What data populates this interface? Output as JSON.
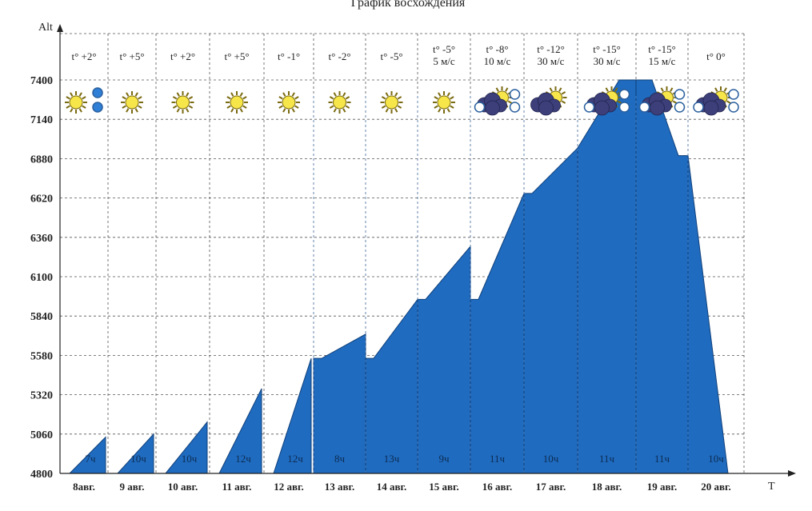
{
  "chart_data": {
    "type": "area",
    "title": "График восхождения",
    "ylabel": "Alt",
    "xlabel": "T",
    "y_ticks": [
      4800,
      5060,
      5320,
      5580,
      5840,
      6100,
      6360,
      6620,
      6880,
      7140,
      7400
    ],
    "ylim": [
      4800,
      7400
    ],
    "grid": true,
    "fill_color": "#1f6bbf",
    "days": [
      {
        "date": "8авг.",
        "weather": [
          "t° +2°"
        ],
        "icon": "sun-icon",
        "hours": "7ч",
        "start": 4800,
        "end": 5040
      },
      {
        "date": "9 авг.",
        "weather": [
          "t° +5°"
        ],
        "icon": "sun-icon",
        "hours": "10ч",
        "start": 4800,
        "end": 5060
      },
      {
        "date": "10 авг.",
        "weather": [
          "t° +2°"
        ],
        "icon": "sun-icon",
        "hours": "10ч",
        "start": 4800,
        "end": 5140
      },
      {
        "date": "11 авг.",
        "weather": [
          "t° +5°"
        ],
        "icon": "sun-icon",
        "hours": "12ч",
        "start": 4800,
        "end": 5360
      },
      {
        "date": "12 авг.",
        "weather": [
          "t° -1°"
        ],
        "icon": "sun-icon",
        "hours": "12ч",
        "start": 4800,
        "end": 5560
      },
      {
        "date": "13 авг.",
        "weather": [
          "t° -2°"
        ],
        "icon": "sun-icon",
        "hours": "8ч",
        "start": 5560,
        "end": 5720
      },
      {
        "date": "14 авг.",
        "weather": [
          "t° -5°"
        ],
        "icon": "sun-icon",
        "hours": "13ч",
        "start": 5560,
        "end": 5950
      },
      {
        "date": "15 авг.",
        "weather": [
          "t° -5°",
          "5 м/с"
        ],
        "icon": "sun-icon",
        "hours": "9ч",
        "start": 5950,
        "end": 6300
      },
      {
        "date": "16 авг.",
        "weather": [
          "t° -8°",
          "10 м/с"
        ],
        "icon": "snow-cloud-icon",
        "hours": "11ч",
        "start": 5950,
        "end": 6650
      },
      {
        "date": "17 авг.",
        "weather": [
          "t° -12°",
          "30 м/с"
        ],
        "icon": "cloud-sun-icon",
        "hours": "10ч",
        "start": 6650,
        "end": 6950
      },
      {
        "date": "18 авг.",
        "weather": [
          "t° -15°",
          "30 м/с"
        ],
        "icon": "snow-cloud-icon",
        "hours": "11ч",
        "start": 6950,
        "end": 7400
      },
      {
        "date": "19 авг.",
        "weather": [
          "t° -15°",
          "15 м/с"
        ],
        "icon": "snow-cloud-icon",
        "hours": "11ч",
        "start": 7400,
        "end": 6900
      },
      {
        "date": "20 авг.",
        "weather": [
          "t° 0°"
        ],
        "icon": "snow-cloud-icon",
        "hours": "10ч",
        "start": 6900,
        "end": 4800
      }
    ]
  }
}
